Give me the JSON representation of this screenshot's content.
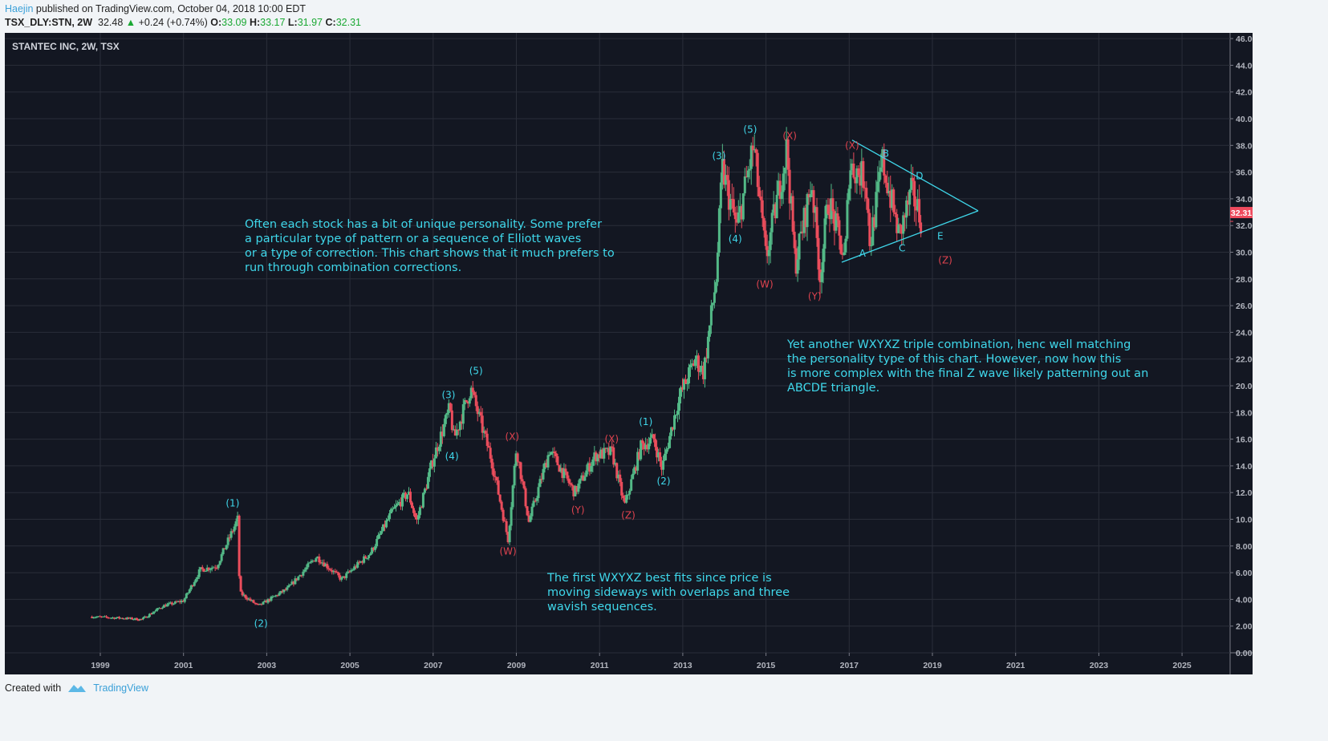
{
  "header": {
    "author": "Haejin",
    "published": "published on TradingView.com, October 04, 2018 10:00 EDT",
    "symbol": "TSX_DLY:STN, 2W",
    "last": "32.48",
    "change": "+0.24 (+0.74%)",
    "o_label": "O:",
    "o": "33.09",
    "h_label": "H:",
    "h": "33.17",
    "l_label": "L:",
    "l": "31.97",
    "c_label": "C:",
    "c": "32.31"
  },
  "footer": {
    "created_with": "Created with",
    "brand": "TradingView"
  },
  "chart_data": {
    "type": "candlestick",
    "title": "STANTEC INC, 2W, TSX",
    "ylim": [
      0,
      46
    ],
    "yticks": [
      "0.00",
      "2.00",
      "4.00",
      "6.00",
      "8.00",
      "10.00",
      "12.00",
      "14.00",
      "16.00",
      "18.00",
      "20.00",
      "22.00",
      "24.00",
      "26.00",
      "28.00",
      "30.00",
      "32.00",
      "34.00",
      "36.00",
      "38.00",
      "40.00",
      "42.00",
      "44.00",
      "46.00"
    ],
    "xticks": [
      "1999",
      "2001",
      "2003",
      "2005",
      "2007",
      "2009",
      "2011",
      "2013",
      "2015",
      "2017",
      "2019",
      "2021",
      "2023",
      "2025"
    ],
    "last_price_label": "32.31",
    "price_path": [
      [
        1998.8,
        2.7
      ],
      [
        1999.5,
        2.6
      ],
      [
        2000.0,
        2.5
      ],
      [
        2000.5,
        3.5
      ],
      [
        2001.0,
        3.9
      ],
      [
        2001.4,
        6.2
      ],
      [
        2001.8,
        6.5
      ],
      [
        2002.3,
        10.0
      ],
      [
        2002.35,
        4.5
      ],
      [
        2002.8,
        3.5
      ],
      [
        2003.5,
        4.8
      ],
      [
        2004.2,
        7.2
      ],
      [
        2004.8,
        5.5
      ],
      [
        2005.5,
        7.5
      ],
      [
        2006.0,
        10.5
      ],
      [
        2006.4,
        12.0
      ],
      [
        2006.6,
        9.8
      ],
      [
        2007.0,
        14.5
      ],
      [
        2007.4,
        18.3
      ],
      [
        2007.5,
        16.0
      ],
      [
        2007.9,
        19.8
      ],
      [
        2008.4,
        14.5
      ],
      [
        2008.8,
        8.5
      ],
      [
        2009.0,
        15.4
      ],
      [
        2009.3,
        9.8
      ],
      [
        2009.8,
        15.2
      ],
      [
        2010.4,
        12.0
      ],
      [
        2010.9,
        14.8
      ],
      [
        2011.3,
        15.0
      ],
      [
        2011.6,
        11.0
      ],
      [
        2012.0,
        15.5
      ],
      [
        2012.3,
        16.0
      ],
      [
        2012.5,
        13.8
      ],
      [
        2012.9,
        19.0
      ],
      [
        2013.3,
        22.0
      ],
      [
        2013.5,
        21.0
      ],
      [
        2013.8,
        28.0
      ],
      [
        2013.95,
        36.2
      ],
      [
        2014.3,
        31.8
      ],
      [
        2014.7,
        38.0
      ],
      [
        2015.0,
        29.5
      ],
      [
        2015.5,
        37.8
      ],
      [
        2015.7,
        29.0
      ],
      [
        2016.1,
        35.3
      ],
      [
        2016.3,
        28.2
      ],
      [
        2016.5,
        34.0
      ],
      [
        2016.9,
        29.3
      ],
      [
        2017.0,
        36.5
      ],
      [
        2017.4,
        35.5
      ],
      [
        2017.5,
        30.5
      ],
      [
        2017.8,
        36.8
      ],
      [
        2018.2,
        31.2
      ],
      [
        2018.5,
        34.5
      ],
      [
        2018.75,
        32.3
      ]
    ],
    "wave_labels": [
      {
        "text": "(1)",
        "t": 2002.18,
        "p": 11.2,
        "color": "#3fd7ea"
      },
      {
        "text": "(2)",
        "t": 2002.86,
        "p": 2.2,
        "color": "#3fd7ea"
      },
      {
        "text": "(3)",
        "t": 2007.37,
        "p": 19.3,
        "color": "#3fd7ea"
      },
      {
        "text": "(4)",
        "t": 2007.45,
        "p": 14.7,
        "color": "#3fd7ea"
      },
      {
        "text": "(5)",
        "t": 2008.03,
        "p": 21.1,
        "color": "#3fd7ea"
      },
      {
        "text": "(X)",
        "t": 2008.9,
        "p": 16.2,
        "color": "#e0434f"
      },
      {
        "text": "(W)",
        "t": 2008.8,
        "p": 7.6,
        "color": "#e0434f"
      },
      {
        "text": "(Y)",
        "t": 2010.48,
        "p": 10.7,
        "color": "#e0434f"
      },
      {
        "text": "(X)",
        "t": 2011.29,
        "p": 16.0,
        "color": "#e0434f"
      },
      {
        "text": "(Z)",
        "t": 2011.69,
        "p": 10.3,
        "color": "#e0434f"
      },
      {
        "text": "(1)",
        "t": 2012.11,
        "p": 17.3,
        "color": "#3fd7ea"
      },
      {
        "text": "(2)",
        "t": 2012.54,
        "p": 12.85,
        "color": "#3fd7ea"
      },
      {
        "text": "(3)",
        "t": 2013.87,
        "p": 37.2,
        "color": "#3fd7ea"
      },
      {
        "text": "(4)",
        "t": 2014.26,
        "p": 31.0,
        "color": "#3fd7ea"
      },
      {
        "text": "(5)",
        "t": 2014.62,
        "p": 39.2,
        "color": "#3fd7ea"
      },
      {
        "text": "(W)",
        "t": 2014.97,
        "p": 27.6,
        "color": "#e0434f"
      },
      {
        "text": "(X)",
        "t": 2015.57,
        "p": 38.7,
        "color": "#e0434f"
      },
      {
        "text": "(Y)",
        "t": 2016.17,
        "p": 26.7,
        "color": "#e0434f"
      },
      {
        "text": "(X)",
        "t": 2017.07,
        "p": 38.0,
        "color": "#e0434f"
      },
      {
        "text": "A",
        "t": 2017.32,
        "p": 29.9,
        "color": "#3fd7ea"
      },
      {
        "text": "B",
        "t": 2017.88,
        "p": 37.4,
        "color": "#3fd7ea"
      },
      {
        "text": "C",
        "t": 2018.27,
        "p": 30.3,
        "color": "#3fd7ea"
      },
      {
        "text": "D",
        "t": 2018.69,
        "p": 35.7,
        "color": "#3fd7ea"
      },
      {
        "text": "E",
        "t": 2019.19,
        "p": 31.2,
        "color": "#3fd7ea"
      },
      {
        "text": "(Z)",
        "t": 2019.31,
        "p": 29.4,
        "color": "#e0434f"
      }
    ],
    "trendlines": [
      {
        "name": "triangle-upper",
        "from": [
          2017.07,
          38.4
        ],
        "to": [
          2020.1,
          33.1
        ]
      },
      {
        "name": "triangle-lower",
        "from": [
          2016.82,
          29.25
        ],
        "to": [
          2020.1,
          33.1
        ]
      }
    ],
    "notes": [
      "Often each stock has a bit of unique personality. Some prefer\na particular type of pattern or a sequence of Elliott waves\nor a type of correction. This chart shows that it much prefers to\nrun through combination corrections.",
      "Yet another WXYXZ triple combination, henc well matching\nthe personality type of this chart. However, now how this\nis more complex with the final Z wave likely patterning out an\nABCDE triangle.",
      "The first WXYXZ best fits since price is\nmoving sideways with overlaps and three\nwavish sequences."
    ],
    "colors": {
      "up": "#53b987",
      "down": "#eb4d5c",
      "bg": "#131722",
      "grid": "#2a2e39"
    }
  }
}
